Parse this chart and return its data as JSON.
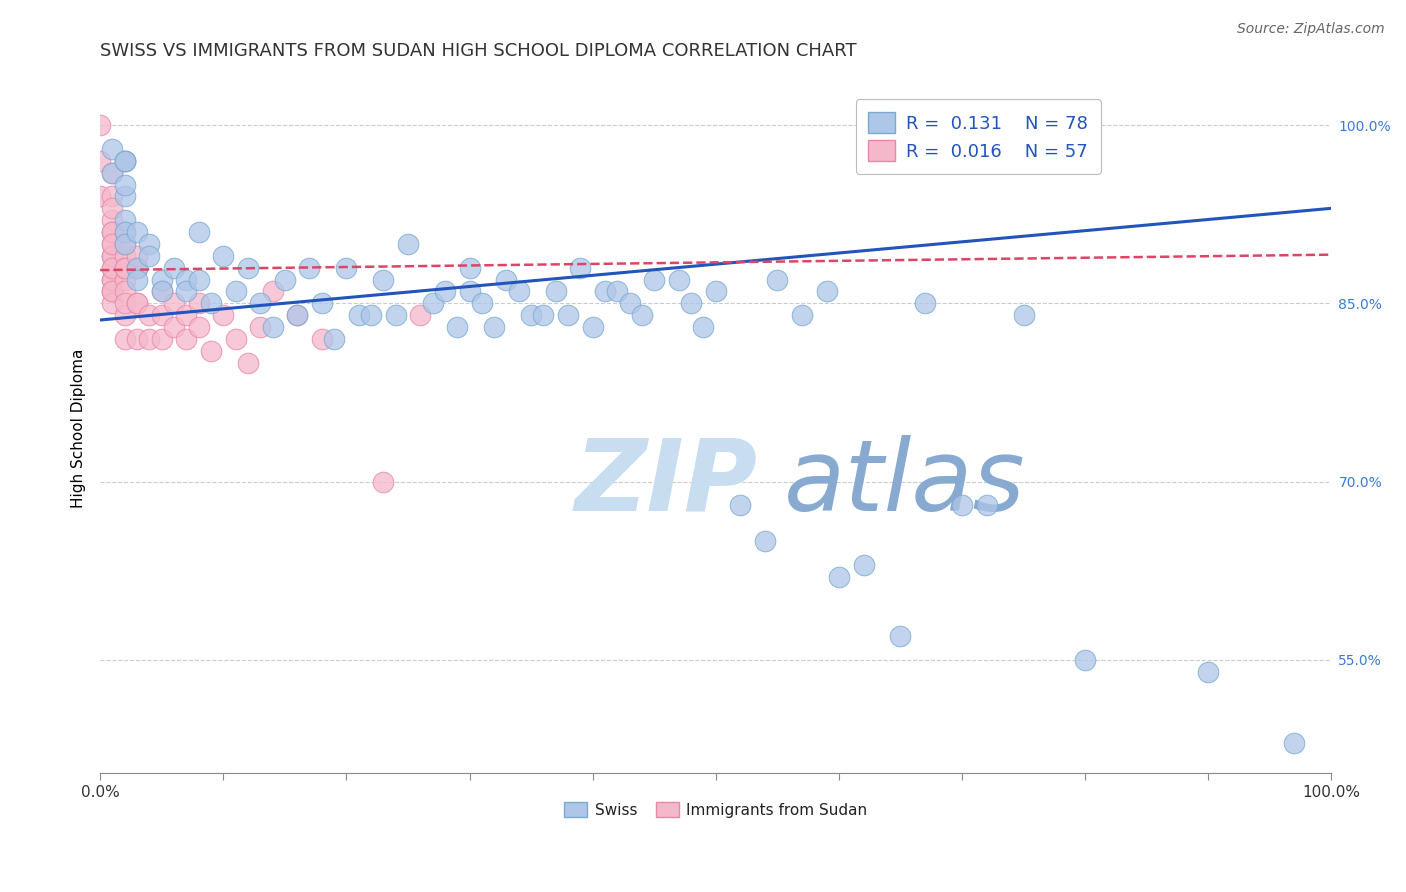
{
  "title": "SWISS VS IMMIGRANTS FROM SUDAN HIGH SCHOOL DIPLOMA CORRELATION CHART",
  "source": "Source: ZipAtlas.com",
  "ylabel": "High School Diploma",
  "xlim": [
    0.0,
    1.0
  ],
  "ylim": [
    0.455,
    1.035
  ],
  "right_yticks": [
    0.55,
    0.7,
    0.85,
    1.0
  ],
  "right_yticklabels": [
    "55.0%",
    "70.0%",
    "85.0%",
    "100.0%"
  ],
  "legend_swiss_R": "0.131",
  "legend_swiss_N": "78",
  "legend_sudan_R": "0.016",
  "legend_sudan_N": "57",
  "swiss_color": "#aec6e8",
  "swiss_edge_color": "#7aaad0",
  "sudan_color": "#f5b8cb",
  "sudan_edge_color": "#e888a8",
  "sudan_dense_color": "#e05080",
  "swiss_line_color": "#2255bb",
  "sudan_line_color": "#dd4466",
  "grid_color": "#cccccc",
  "watermark_zip_color": "#c8ddf0",
  "watermark_atlas_color": "#88aad0",
  "title_fontsize": 13,
  "source_fontsize": 10,
  "background_color": "#ffffff",
  "swiss_x": [
    0.01,
    0.01,
    0.02,
    0.02,
    0.02,
    0.02,
    0.02,
    0.02,
    0.02,
    0.02,
    0.03,
    0.03,
    0.03,
    0.04,
    0.04,
    0.05,
    0.05,
    0.06,
    0.07,
    0.07,
    0.08,
    0.08,
    0.09,
    0.1,
    0.11,
    0.12,
    0.13,
    0.14,
    0.15,
    0.16,
    0.17,
    0.18,
    0.19,
    0.2,
    0.21,
    0.22,
    0.23,
    0.24,
    0.25,
    0.27,
    0.28,
    0.29,
    0.3,
    0.3,
    0.31,
    0.32,
    0.33,
    0.34,
    0.35,
    0.36,
    0.37,
    0.38,
    0.39,
    0.4,
    0.41,
    0.42,
    0.43,
    0.44,
    0.45,
    0.47,
    0.48,
    0.49,
    0.5,
    0.52,
    0.54,
    0.55,
    0.57,
    0.59,
    0.6,
    0.62,
    0.65,
    0.67,
    0.7,
    0.72,
    0.75,
    0.8,
    0.9,
    0.97
  ],
  "swiss_y": [
    0.96,
    0.98,
    0.94,
    0.97,
    0.97,
    0.97,
    0.95,
    0.92,
    0.91,
    0.9,
    0.91,
    0.88,
    0.87,
    0.9,
    0.89,
    0.87,
    0.86,
    0.88,
    0.87,
    0.86,
    0.91,
    0.87,
    0.85,
    0.89,
    0.86,
    0.88,
    0.85,
    0.83,
    0.87,
    0.84,
    0.88,
    0.85,
    0.82,
    0.88,
    0.84,
    0.84,
    0.87,
    0.84,
    0.9,
    0.85,
    0.86,
    0.83,
    0.88,
    0.86,
    0.85,
    0.83,
    0.87,
    0.86,
    0.84,
    0.84,
    0.86,
    0.84,
    0.88,
    0.83,
    0.86,
    0.86,
    0.85,
    0.84,
    0.87,
    0.87,
    0.85,
    0.83,
    0.86,
    0.68,
    0.65,
    0.87,
    0.84,
    0.86,
    0.62,
    0.63,
    0.57,
    0.85,
    0.68,
    0.68,
    0.84,
    0.55,
    0.54,
    0.48
  ],
  "sudan_x": [
    0.0,
    0.0,
    0.0,
    0.01,
    0.01,
    0.01,
    0.01,
    0.01,
    0.01,
    0.01,
    0.01,
    0.01,
    0.01,
    0.01,
    0.01,
    0.01,
    0.01,
    0.01,
    0.01,
    0.01,
    0.01,
    0.02,
    0.02,
    0.02,
    0.02,
    0.02,
    0.02,
    0.02,
    0.02,
    0.02,
    0.02,
    0.03,
    0.03,
    0.03,
    0.03,
    0.03,
    0.04,
    0.04,
    0.05,
    0.05,
    0.05,
    0.06,
    0.06,
    0.07,
    0.07,
    0.08,
    0.08,
    0.09,
    0.1,
    0.11,
    0.12,
    0.13,
    0.14,
    0.16,
    0.18,
    0.23,
    0.26
  ],
  "sudan_y": [
    0.94,
    0.97,
    1.0,
    0.96,
    0.94,
    0.92,
    0.9,
    0.88,
    0.86,
    0.91,
    0.89,
    0.87,
    0.86,
    0.93,
    0.91,
    0.89,
    0.87,
    0.85,
    0.9,
    0.88,
    0.86,
    0.89,
    0.87,
    0.91,
    0.88,
    0.86,
    0.84,
    0.9,
    0.88,
    0.85,
    0.82,
    0.88,
    0.85,
    0.82,
    0.89,
    0.85,
    0.84,
    0.82,
    0.86,
    0.84,
    0.82,
    0.85,
    0.83,
    0.84,
    0.82,
    0.85,
    0.83,
    0.81,
    0.84,
    0.82,
    0.8,
    0.83,
    0.86,
    0.84,
    0.82,
    0.7,
    0.84
  ],
  "swiss_trend_x": [
    0.0,
    1.0
  ],
  "swiss_trend_y": [
    0.836,
    0.93
  ],
  "sudan_trend_x": [
    0.0,
    1.0
  ],
  "sudan_trend_y": [
    0.878,
    0.891
  ],
  "xtick_positions": [
    0.0,
    0.1,
    0.2,
    0.3,
    0.4,
    0.5,
    0.6,
    0.7,
    0.8,
    0.9,
    1.0
  ],
  "xtick_labels_show": [
    "0.0%",
    "",
    "",
    "",
    "",
    "",
    "",
    "",
    "",
    "",
    "100.0%"
  ]
}
